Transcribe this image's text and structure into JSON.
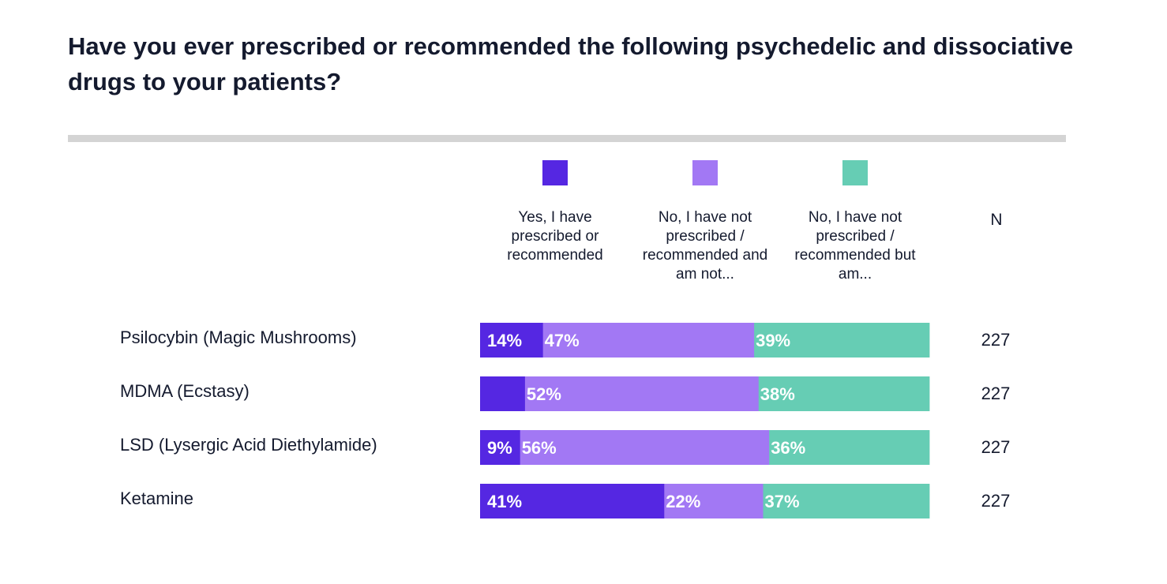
{
  "chart_data": {
    "type": "bar",
    "orientation": "horizontal",
    "stacked": true,
    "title": "Have you ever prescribed or recommended the following psychedelic and dissociative drugs to your patients?",
    "categories": [
      "Psilocybin (Magic Mushrooms)",
      "MDMA (Ecstasy)",
      "LSD (Lysergic Acid Diethylamide)",
      "Ketamine"
    ],
    "series": [
      {
        "name": "Yes, I have prescribed or recommended",
        "color": "#5527e2",
        "values": [
          14,
          10,
          9,
          41
        ],
        "labels": [
          "14%",
          "",
          "9%",
          "41%"
        ]
      },
      {
        "name": "No, I have not prescribed / recommended and am not...",
        "color": "#a278f4",
        "values": [
          47,
          52,
          56,
          22
        ],
        "labels": [
          "47%",
          "52%",
          "56%",
          "22%"
        ]
      },
      {
        "name": "No, I have not prescribed / recommended but am...",
        "color": "#66cdb4",
        "values": [
          39,
          38,
          36,
          37
        ],
        "labels": [
          "39%",
          "38%",
          "36%",
          "37%"
        ]
      }
    ],
    "n_header": "N",
    "n_values": [
      "227",
      "227",
      "227",
      "227"
    ],
    "legend_position": "top",
    "grid": false
  }
}
